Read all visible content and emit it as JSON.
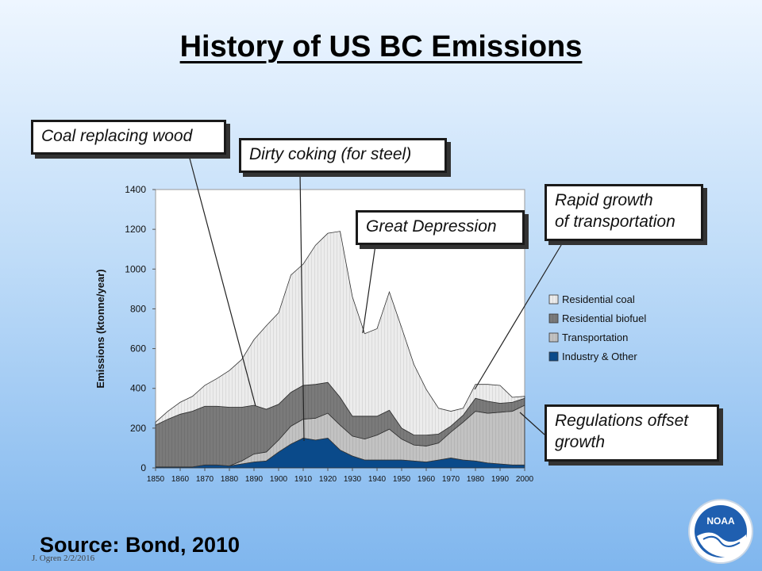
{
  "slide": {
    "title": "History of US BC Emissions",
    "source": "Source:  Bond, 2010",
    "footer_note": "J. Ogren  2/2/2016",
    "logo_text": "NOAA"
  },
  "callouts": {
    "coal_replacing_wood": "Coal replacing wood",
    "dirty_coking": "Dirty coking (for steel)",
    "great_depression": "Great Depression",
    "rapid_growth_line1": "Rapid growth",
    "rapid_growth_line2": "of transportation",
    "regulations_line1": "Regulations offset",
    "regulations_line2": "growth"
  },
  "colors": {
    "residential_coal": "#ececec",
    "residential_biofuel": "#7a7a7a",
    "transportation": "#c2c2c2",
    "industry_other": "#0a4a8a"
  },
  "chart_data": {
    "type": "area",
    "stacked": true,
    "title": "",
    "xlabel": "",
    "ylabel": "Emissions (ktonne/year)",
    "xlim": [
      1850,
      2000
    ],
    "ylim": [
      0,
      1400
    ],
    "x_ticks": [
      1850,
      1860,
      1870,
      1880,
      1890,
      1900,
      1910,
      1920,
      1930,
      1940,
      1950,
      1960,
      1970,
      1980,
      1990,
      2000
    ],
    "y_ticks": [
      0,
      200,
      400,
      600,
      800,
      1000,
      1200,
      1400
    ],
    "grid": false,
    "legend_position": "right",
    "x": [
      1850,
      1855,
      1860,
      1865,
      1870,
      1875,
      1880,
      1885,
      1890,
      1895,
      1900,
      1905,
      1910,
      1915,
      1920,
      1925,
      1930,
      1935,
      1940,
      1945,
      1950,
      1955,
      1960,
      1965,
      1970,
      1975,
      1980,
      1985,
      1990,
      1995,
      2000
    ],
    "series": [
      {
        "name": "Industry & Other",
        "color_key": "industry_other",
        "values": [
          5,
          5,
          5,
          5,
          15,
          15,
          10,
          20,
          30,
          35,
          80,
          120,
          150,
          140,
          150,
          90,
          60,
          40,
          40,
          40,
          40,
          35,
          30,
          40,
          50,
          40,
          35,
          25,
          20,
          15,
          15
        ]
      },
      {
        "name": "Transportation",
        "color_key": "transportation",
        "values": [
          0,
          0,
          0,
          0,
          0,
          0,
          0,
          15,
          40,
          45,
          60,
          90,
          95,
          110,
          125,
          125,
          100,
          105,
          125,
          155,
          105,
          80,
          80,
          85,
          130,
          190,
          250,
          250,
          260,
          270,
          300
        ]
      },
      {
        "name": "Residential biofuel",
        "color_key": "residential_biofuel",
        "values": [
          210,
          240,
          265,
          280,
          295,
          295,
          295,
          270,
          245,
          215,
          180,
          170,
          170,
          170,
          155,
          140,
          100,
          115,
          95,
          95,
          55,
          50,
          55,
          45,
          30,
          35,
          65,
          60,
          45,
          45,
          35
        ]
      },
      {
        "name": "Residential coal",
        "color_key": "residential_coal",
        "values": [
          15,
          40,
          60,
          75,
          105,
          140,
          185,
          240,
          330,
          420,
          460,
          590,
          610,
          700,
          750,
          835,
          600,
          415,
          440,
          595,
          505,
          355,
          230,
          130,
          75,
          35,
          70,
          85,
          90,
          25,
          10
        ]
      }
    ]
  }
}
